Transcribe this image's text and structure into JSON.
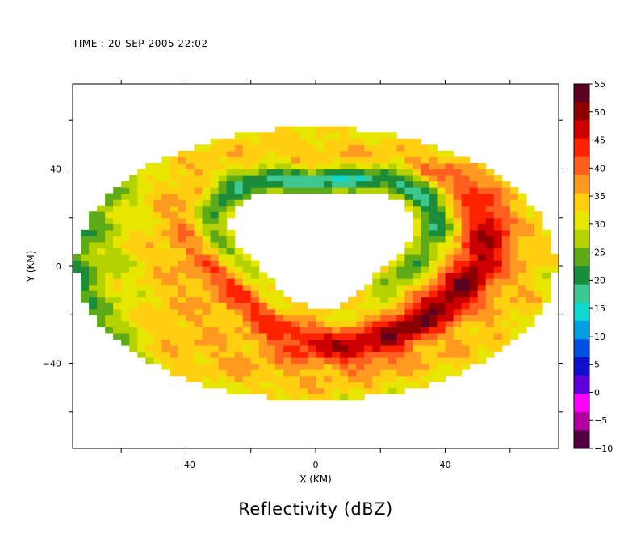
{
  "chart_data": {
    "type": "heatmap",
    "time_label": "TIME : 20-SEP-2005 22:02",
    "title": "Reflectivity (dBZ)",
    "xlabel": "X (KM)",
    "ylabel": "Y (KM)",
    "xlim": [
      -75,
      75
    ],
    "ylim": [
      -75,
      75
    ],
    "xticks": [
      -40,
      0,
      40
    ],
    "yticks": [
      -40,
      0,
      40
    ],
    "colorbar": {
      "vmin": -10,
      "vmax": 55,
      "tick_values": [
        55,
        50,
        45,
        40,
        35,
        30,
        25,
        20,
        15,
        10,
        5,
        0,
        -5,
        -10
      ],
      "tick_labels": [
        "55",
        "50",
        "45",
        "40",
        "35",
        "30",
        "25",
        "20",
        "15",
        "10",
        "5",
        "0",
        "−5",
        "−10"
      ],
      "colors": [
        "#5a0020",
        "#8b0000",
        "#cc0000",
        "#ff2200",
        "#ff6020",
        "#ff9a20",
        "#ffcf10",
        "#e6e600",
        "#b4d200",
        "#5faa18",
        "#1a8c3a",
        "#3cc890",
        "#10d8d0",
        "#00a0e0",
        "#0050e0",
        "#1010c8",
        "#6000d8",
        "#ff00ff",
        "#b000a0",
        "#500040"
      ]
    },
    "description_features": {
      "eye_center_km": [
        2,
        10
      ],
      "eye_radius_km": 25,
      "outer_radius_km": 75,
      "eyewall_max_dbz": 50,
      "rainband_dbz": 35
    }
  }
}
